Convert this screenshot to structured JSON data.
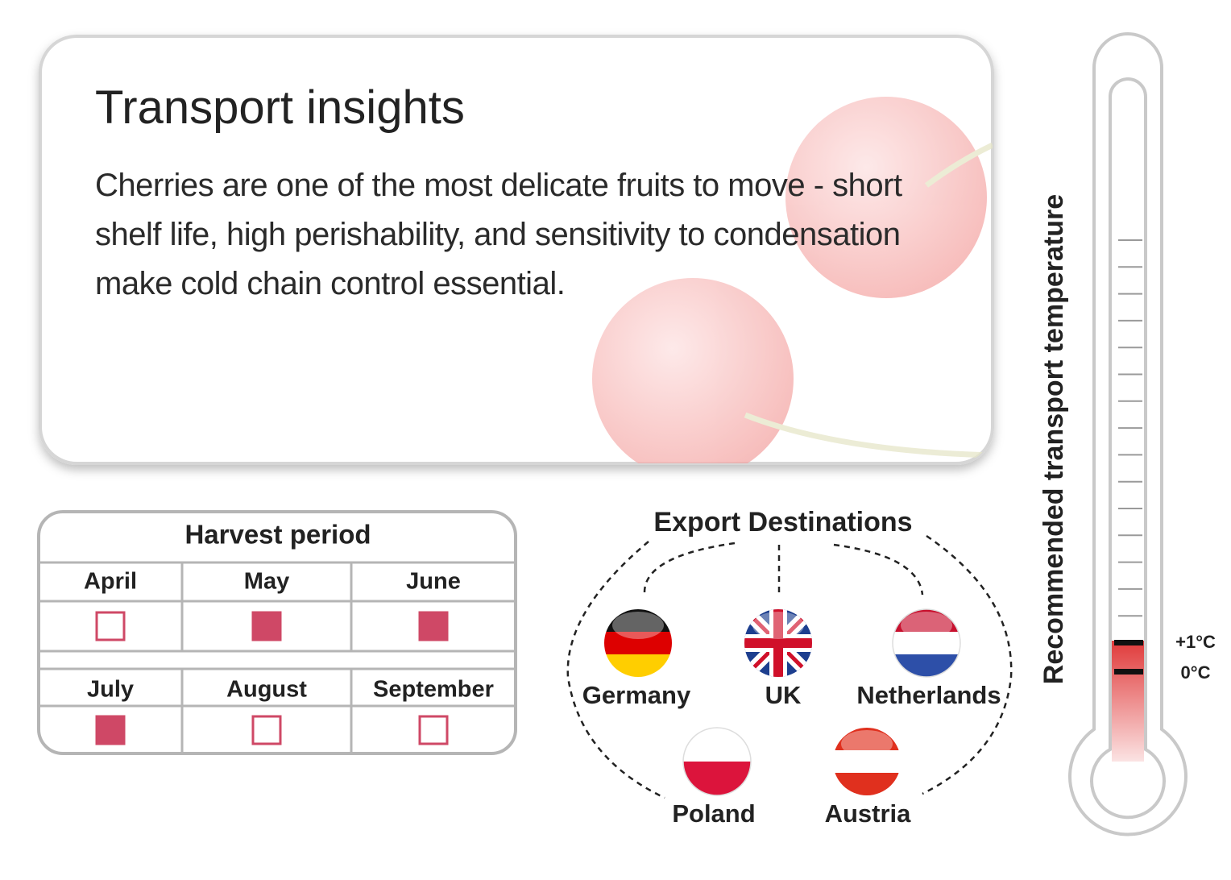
{
  "card": {
    "title": "Transport insights",
    "text": "Cherries are one of the most delicate fruits to move - short shelf life, high perishability, and sensitivity to condensation make cold chain control essential."
  },
  "harvest": {
    "title": "Harvest period",
    "months": [
      {
        "name": "April",
        "in_season": false
      },
      {
        "name": "May",
        "in_season": true
      },
      {
        "name": "June",
        "in_season": true
      },
      {
        "name": "July",
        "in_season": true
      },
      {
        "name": "August",
        "in_season": false
      },
      {
        "name": "September",
        "in_season": false
      }
    ]
  },
  "export": {
    "title": "Export Destinations",
    "countries": [
      "Germany",
      "UK",
      "Netherlands",
      "Poland",
      "Austria"
    ]
  },
  "thermometer": {
    "title": "Recommended transport temperature",
    "upper": "+1°C",
    "lower": "0°C"
  }
}
